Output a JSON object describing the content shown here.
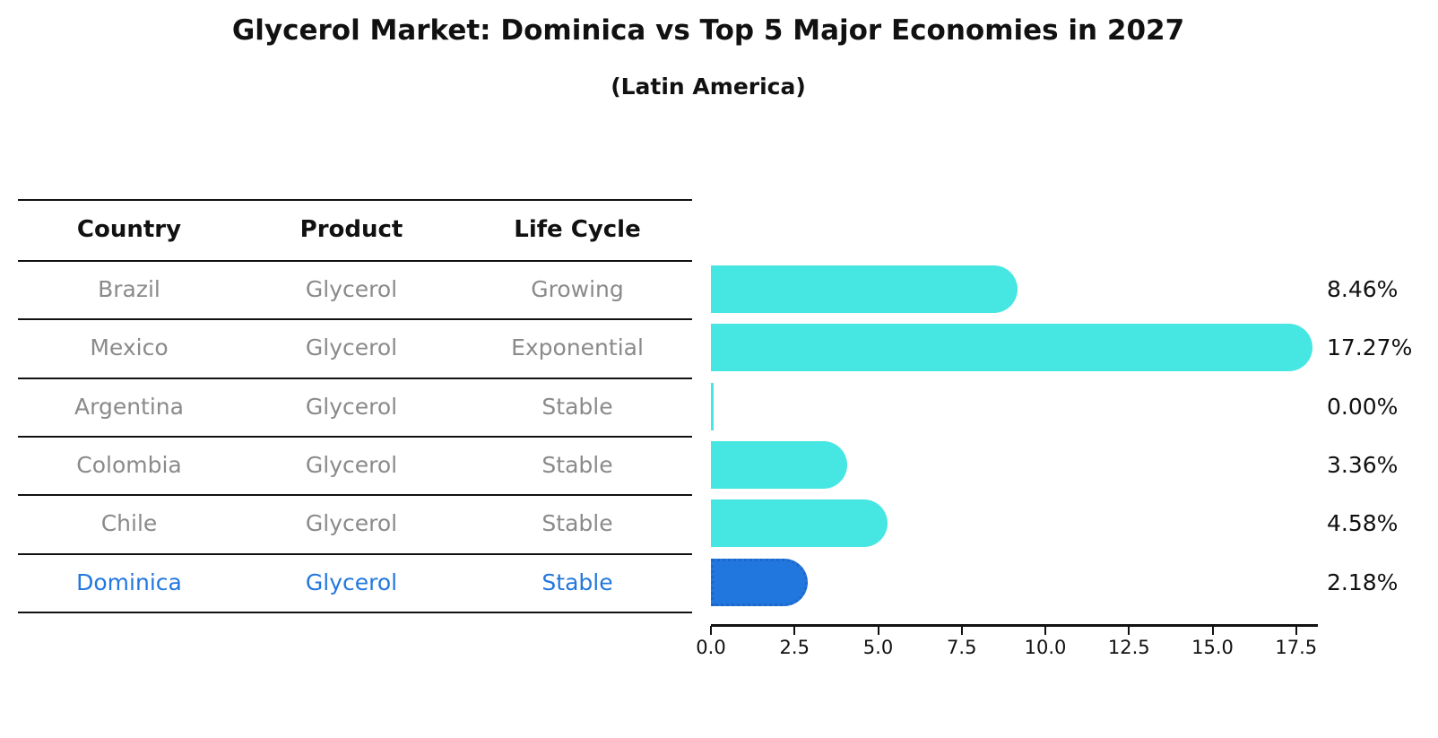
{
  "title": "Glycerol Market: Dominica vs Top 5 Major Economies in 2027",
  "subtitle": "(Latin America)",
  "table": {
    "columns": [
      "Country",
      "Product",
      "Life Cycle"
    ],
    "rows": [
      {
        "country": "Brazil",
        "product": "Glycerol",
        "life_cycle": "Growing",
        "highlight": false
      },
      {
        "country": "Mexico",
        "product": "Glycerol",
        "life_cycle": "Exponential",
        "highlight": false
      },
      {
        "country": "Argentina",
        "product": "Glycerol",
        "life_cycle": "Stable",
        "highlight": false
      },
      {
        "country": "Colombia",
        "product": "Glycerol",
        "life_cycle": "Stable",
        "highlight": false
      },
      {
        "country": "Chile",
        "product": "Glycerol",
        "life_cycle": "Stable",
        "highlight": false
      },
      {
        "country": "Dominica",
        "product": "Glycerol",
        "life_cycle": "Stable",
        "highlight": true
      }
    ]
  },
  "chart_data": {
    "type": "bar",
    "orientation": "horizontal",
    "categories": [
      "Brazil",
      "Mexico",
      "Argentina",
      "Colombia",
      "Chile",
      "Dominica"
    ],
    "values": [
      8.46,
      17.27,
      0.0,
      3.36,
      4.58,
      2.18
    ],
    "value_labels": [
      "8.46%",
      "17.27%",
      "0.00%",
      "3.36%",
      "4.58%",
      "2.18%"
    ],
    "highlight_category": "Dominica",
    "xlim": [
      0,
      17.5
    ],
    "xticks": [
      0.0,
      2.5,
      5.0,
      7.5,
      10.0,
      12.5,
      15.0,
      17.5
    ],
    "xtick_labels": [
      "0.0",
      "2.5",
      "5.0",
      "7.5",
      "10.0",
      "12.5",
      "15.0",
      "17.5"
    ],
    "grid": false,
    "legend": false,
    "colors": {
      "bar": "#46e6e2",
      "highlight_bar": "#2277df",
      "highlight_border": "#1c66cc",
      "highlight_text": "#2277df",
      "table_text": "#8a8a8a",
      "axis_text": "#111111"
    }
  }
}
